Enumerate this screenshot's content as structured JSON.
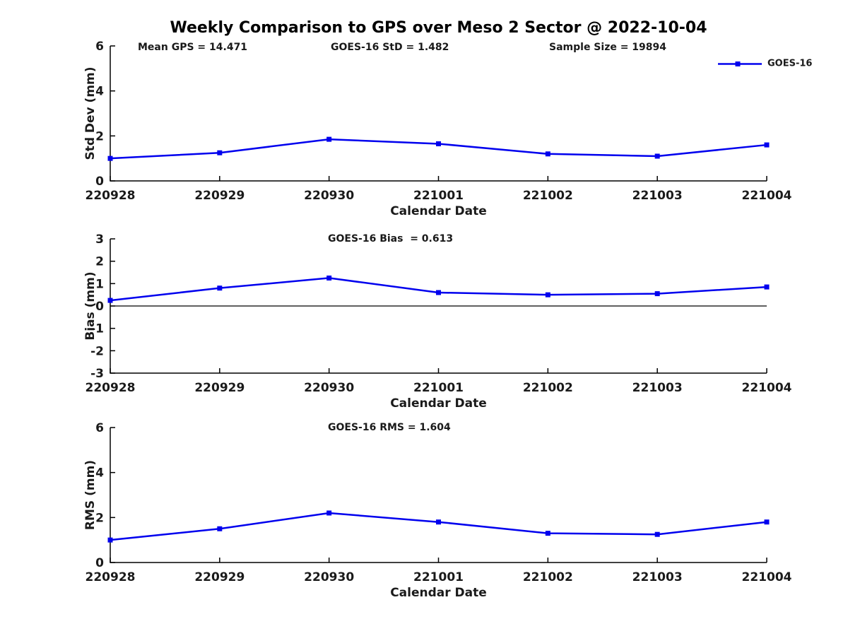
{
  "figure": {
    "title": "Weekly Comparison to GPS over Meso 2 Sector @ 2022-10-04",
    "background": "#ffffff"
  },
  "colors": {
    "series": "#0000ee",
    "axis": "#000000",
    "text": "#1a1a1a",
    "zero_line": "#000000"
  },
  "legend": {
    "label": "GOES-16",
    "position": "top-right",
    "box": false
  },
  "chart_data": [
    {
      "type": "line",
      "title": "",
      "annotations": [
        {
          "label": "Mean GPS = 14.471"
        },
        {
          "label": "GOES-16 StD = 1.482"
        },
        {
          "label": "Sample Size = 19894"
        }
      ],
      "xlabel": "Calendar Date",
      "ylabel": "Std Dev (mm)",
      "categories": [
        "220928",
        "220929",
        "220930",
        "221001",
        "221002",
        "221003",
        "221004"
      ],
      "series": [
        {
          "name": "GOES-16",
          "values": [
            1.0,
            1.25,
            1.85,
            1.65,
            1.2,
            1.1,
            1.6
          ]
        }
      ],
      "ylim": [
        0,
        6
      ],
      "yticks": [
        0,
        2,
        4,
        6
      ],
      "zero_line": false,
      "grid": false,
      "legend_position": "top-right"
    },
    {
      "type": "line",
      "title": "GOES-16 Bias  = 0.613",
      "xlabel": "Calendar Date",
      "ylabel": "Bias (mm)",
      "categories": [
        "220928",
        "220929",
        "220930",
        "221001",
        "221002",
        "221003",
        "221004"
      ],
      "series": [
        {
          "name": "GOES-16",
          "values": [
            0.25,
            0.8,
            1.25,
            0.6,
            0.5,
            0.55,
            0.85
          ]
        }
      ],
      "ylim": [
        -3,
        3
      ],
      "yticks": [
        -3,
        -2,
        -1,
        0,
        1,
        2,
        3
      ],
      "zero_line": true,
      "grid": false
    },
    {
      "type": "line",
      "title": "GOES-16 RMS = 1.604",
      "xlabel": "Calendar Date",
      "ylabel": "RMS (mm)",
      "categories": [
        "220928",
        "220929",
        "220930",
        "221001",
        "221002",
        "221003",
        "221004"
      ],
      "series": [
        {
          "name": "GOES-16",
          "values": [
            1.0,
            1.5,
            2.2,
            1.8,
            1.3,
            1.25,
            1.8
          ]
        }
      ],
      "ylim": [
        0,
        6
      ],
      "yticks": [
        0,
        2,
        4,
        6
      ],
      "zero_line": false,
      "grid": false
    }
  ]
}
